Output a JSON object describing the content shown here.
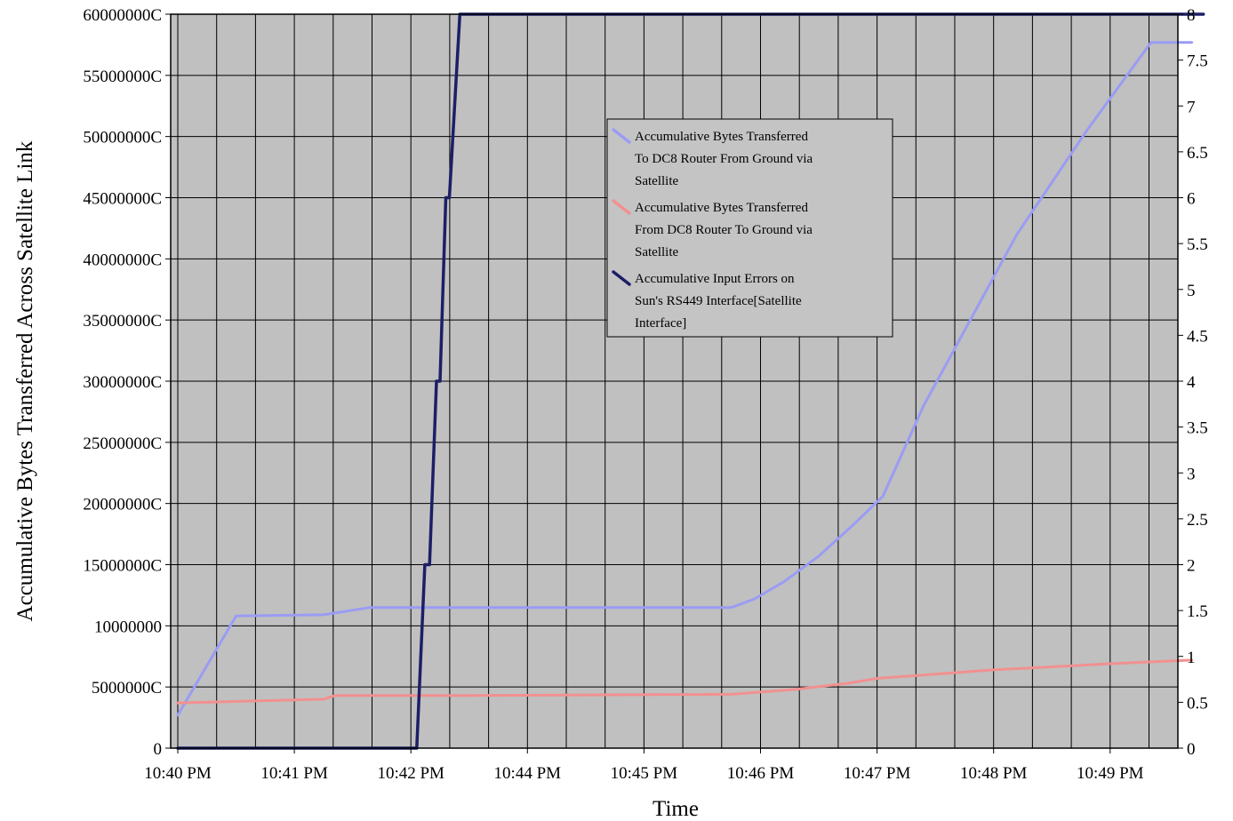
{
  "chart_data": {
    "type": "line",
    "title": "",
    "xlabel": "Time",
    "ylabel": "Accumulative Bytes Transferred Across Satellite Link",
    "x_ticks": [
      "10:40 PM",
      "10:41 PM",
      "10:42 PM",
      "10:44 PM",
      "10:45 PM",
      "10:46 PM",
      "10:47 PM",
      "10:48 PM",
      "10:49 PM"
    ],
    "x_tick_minutes": [
      0,
      1,
      2,
      3,
      4,
      5,
      6,
      7,
      8
    ],
    "x_range_minutes": [
      0,
      8.8
    ],
    "y_left": {
      "ticks": [
        "0",
        "5000000C",
        "10000000",
        "15000000C",
        "20000000C",
        "25000000C",
        "30000000C",
        "35000000C",
        "40000000C",
        "45000000C",
        "50000000C",
        "55000000C",
        "60000000C"
      ],
      "range": [
        0,
        60000000
      ]
    },
    "y_right": {
      "ticks": [
        "0",
        "0.5",
        "1",
        "1.5",
        "2",
        "2.5",
        "3",
        "3.5",
        "4",
        "4.5",
        "5",
        "5.5",
        "6",
        "6.5",
        "7",
        "7.5",
        "8"
      ],
      "range": [
        0,
        8
      ]
    },
    "grid": true,
    "legend_position": "upper-center",
    "series": [
      {
        "name": "Accumulative Bytes Transferred To DC8 Router From Ground via Satellite",
        "legend_lines": [
          "Accumulative Bytes Transferred",
          "To DC8 Router From Ground via",
          "Satellite"
        ],
        "axis": "left",
        "color": "#9a9cf4",
        "x": [
          0,
          0.5,
          1.25,
          1.65,
          2.5,
          4.75,
          4.95,
          5.2,
          5.5,
          5.8,
          6.05,
          6.4,
          7.2,
          7.8,
          8.35,
          8.7
        ],
        "y": [
          2700000,
          10800000,
          10900000,
          11500000,
          11500000,
          11500000,
          12200000,
          13600000,
          15700000,
          18300000,
          20600000,
          28000000,
          42000000,
          50500000,
          57700000,
          57700000
        ]
      },
      {
        "name": "Accumulative Bytes Transferred From DC8 Router To Ground via Satellite",
        "legend_lines": [
          "Accumulative Bytes Transferred",
          "From DC8 Router To Ground via",
          "Satellite"
        ],
        "axis": "left",
        "color": "#f29090",
        "x": [
          0,
          1.25,
          1.35,
          2.5,
          4.75,
          5.3,
          5.75,
          6.0,
          7.0,
          8.0,
          8.7
        ],
        "y": [
          3700000,
          4000000,
          4300000,
          4300000,
          4400000,
          4800000,
          5300000,
          5700000,
          6400000,
          6900000,
          7200000
        ],
        "legend_only": false
      },
      {
        "name": "Accumulative Input Errors on Sun's RS449 Interface[Satellite Interface]",
        "legend_lines": [
          "Accumulative Input Errors on",
          "Sun's RS449 Interface[Satellite",
          "Interface]"
        ],
        "axis": "right",
        "color": "#1c1f66",
        "x": [
          0,
          2.05,
          2.12,
          2.16,
          2.22,
          2.25,
          2.3,
          2.33,
          2.42,
          8.8
        ],
        "y": [
          0,
          0,
          2,
          2,
          4,
          4,
          6,
          6,
          8,
          8
        ]
      }
    ]
  }
}
